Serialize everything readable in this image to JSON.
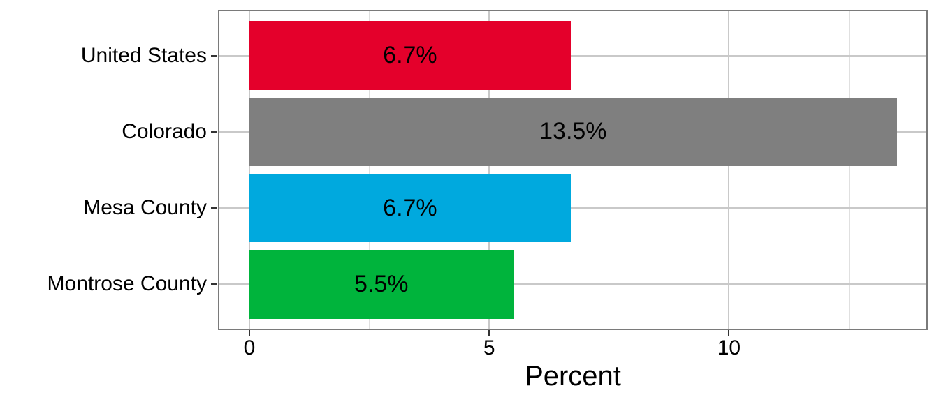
{
  "chart_data": {
    "type": "bar",
    "orientation": "horizontal",
    "title": "",
    "xlabel": "Percent",
    "ylabel": "",
    "categories": [
      "United States",
      "Colorado",
      "Mesa County",
      "Montrose County"
    ],
    "values": [
      6.7,
      13.5,
      6.7,
      5.5
    ],
    "value_labels": [
      "6.7%",
      "13.5%",
      "6.7%",
      "5.5%"
    ],
    "bar_colors": [
      "#e4002b",
      "#7f7f7f",
      "#00a9de",
      "#00b43c"
    ],
    "xlim": [
      -0.655,
      14.145
    ],
    "x_major_ticks": [
      0,
      5,
      10
    ],
    "x_major_tick_labels": [
      "0",
      "5",
      "10"
    ],
    "x_minor_ticks": [
      2.5,
      7.5,
      12.5
    ],
    "grid": "vertical major+minor, horizontal major at category centers",
    "legend_position": "none",
    "theme": {
      "background": "#ffffff",
      "panel_background": "#ffffff",
      "panel_border": "#7a7a7a",
      "major_gridline": "#c9c9c9",
      "minor_gridline": "#e0e0e0",
      "axis_tick": "#333333",
      "text_color": "#000000",
      "bar_label_color": "#000000"
    }
  }
}
